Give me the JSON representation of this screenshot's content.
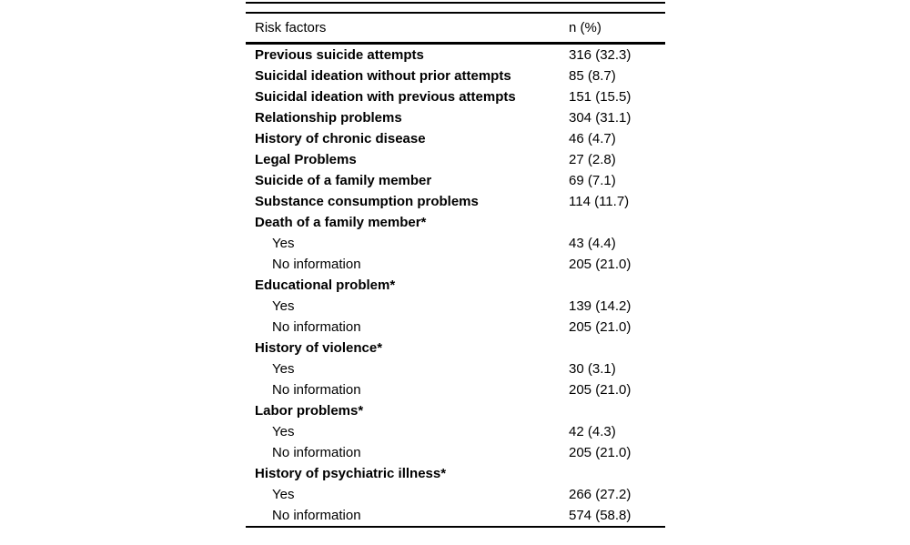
{
  "page": {
    "background_color": "#ffffff",
    "text_color": "#000000",
    "rule_color": "#000000"
  },
  "table": {
    "columns": [
      "Risk factors",
      "n (%)"
    ],
    "footnote_marker": "*",
    "rows": [
      {
        "label": "Previous suicide attempts",
        "value": "316 (32.3)",
        "bold": true,
        "indent": false
      },
      {
        "label": "Suicidal ideation without prior attempts",
        "value": "85 (8.7)",
        "bold": true,
        "indent": false
      },
      {
        "label": "Suicidal ideation with previous attempts",
        "value": "151 (15.5)",
        "bold": true,
        "indent": false
      },
      {
        "label": "Relationship problems",
        "value": "304 (31.1)",
        "bold": true,
        "indent": false
      },
      {
        "label": "History of chronic disease",
        "value": "46 (4.7)",
        "bold": true,
        "indent": false
      },
      {
        "label": "Legal Problems",
        "value": "27 (2.8)",
        "bold": true,
        "indent": false
      },
      {
        "label": "Suicide of a family member",
        "value": "69 (7.1)",
        "bold": true,
        "indent": false
      },
      {
        "label": "Substance consumption problems",
        "value": "114 (11.7)",
        "bold": true,
        "indent": false
      },
      {
        "label": "Death of a family member*",
        "value": "",
        "bold": true,
        "indent": false
      },
      {
        "label": "Yes",
        "value": "43 (4.4)",
        "bold": false,
        "indent": true
      },
      {
        "label": "No information",
        "value": "205 (21.0)",
        "bold": false,
        "indent": true
      },
      {
        "label": "Educational problem*",
        "value": "",
        "bold": true,
        "indent": false
      },
      {
        "label": "Yes",
        "value": "139 (14.2)",
        "bold": false,
        "indent": true
      },
      {
        "label": "No information",
        "value": "205 (21.0)",
        "bold": false,
        "indent": true
      },
      {
        "label": "History of violence*",
        "value": "",
        "bold": true,
        "indent": false
      },
      {
        "label": "Yes",
        "value": "30 (3.1)",
        "bold": false,
        "indent": true
      },
      {
        "label": "No information",
        "value": "205 (21.0)",
        "bold": false,
        "indent": true
      },
      {
        "label": "Labor problems*",
        "value": "",
        "bold": true,
        "indent": false
      },
      {
        "label": "Yes",
        "value": "42 (4.3)",
        "bold": false,
        "indent": true
      },
      {
        "label": "No information",
        "value": "205 (21.0)",
        "bold": false,
        "indent": true
      },
      {
        "label": "History of psychiatric illness*",
        "value": "",
        "bold": true,
        "indent": false
      },
      {
        "label": "Yes",
        "value": "266 (27.2)",
        "bold": false,
        "indent": true
      },
      {
        "label": "No information",
        "value": "574 (58.8)",
        "bold": false,
        "indent": true
      }
    ]
  }
}
